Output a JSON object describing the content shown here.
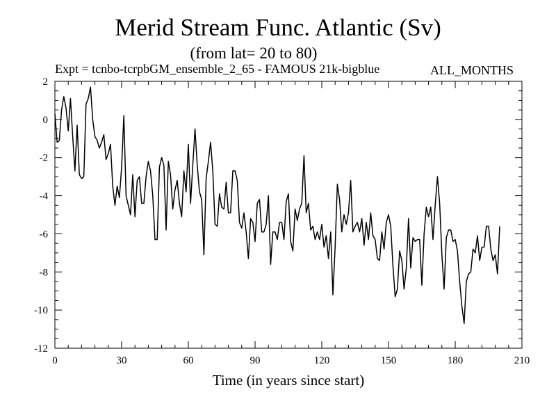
{
  "chart_data": {
    "type": "line",
    "title": "Merid Stream Func. Atlantic (Sv)",
    "subtitle": "(from lat= 20 to 80)",
    "experiment": "Expt = tcnbo-tcrpbGM_ensemble_2_65 - FAMOUS 21k-bigblue",
    "months_label": "ALL_MONTHS",
    "xlabel": "Time (in years since start)",
    "ylabel": "",
    "xlim": [
      0,
      210
    ],
    "ylim": [
      -12,
      2
    ],
    "xticks": [
      0,
      30,
      60,
      90,
      120,
      150,
      180,
      210
    ],
    "yticks": [
      2,
      0,
      -2,
      -4,
      -6,
      -8,
      -10,
      -12
    ],
    "grid": false,
    "x_start": 0,
    "x_step": 1,
    "series": [
      {
        "name": "Merid Stream Func. Atlantic",
        "values": [
          0.3,
          -1.2,
          -1.1,
          0.5,
          1.2,
          0.6,
          -0.6,
          1.1,
          -0.9,
          -2.7,
          -0.3,
          -2.9,
          -3.1,
          -3.0,
          0.8,
          1.1,
          1.7,
          0.0,
          -0.9,
          -1.1,
          -1.5,
          -1.2,
          -0.8,
          -2.1,
          -1.8,
          -1.3,
          -3.5,
          -4.5,
          -3.5,
          -4.1,
          -2.5,
          0.2,
          -4.0,
          -4.5,
          -5.0,
          -2.9,
          -5.1,
          -3.2,
          -3.0,
          -4.4,
          -4.4,
          -3.0,
          -2.2,
          -2.7,
          -4.0,
          -6.3,
          -6.3,
          -2.5,
          -2.0,
          -2.4,
          -5.8,
          -2.2,
          -2.9,
          -4.7,
          -3.7,
          -3.2,
          -4.4,
          -5.1,
          -2.7,
          -3.8,
          -1.3,
          -4.4,
          -2.4,
          -0.5,
          -2.4,
          -3.8,
          -4.2,
          -7.1,
          -3.1,
          -2.2,
          -1.2,
          -2.7,
          -5.5,
          -5.6,
          -3.9,
          -4.6,
          -4.7,
          -3.3,
          -4.9,
          -4.9,
          -2.7,
          -2.7,
          -3.2,
          -5.4,
          -5.7,
          -4.9,
          -5.9,
          -7.3,
          -5.2,
          -5.4,
          -6.4,
          -4.4,
          -4.2,
          -5.9,
          -5.9,
          -5.5,
          -4.0,
          -7.6,
          -5.9,
          -5.9,
          -6.3,
          -5.4,
          -5.4,
          -6.3,
          -4.3,
          -3.9,
          -6.4,
          -6.9,
          -4.7,
          -5.3,
          -4.7,
          -4.4,
          -1.9,
          -4.9,
          -4.4,
          -5.8,
          -5.6,
          -6.3,
          -5.9,
          -6.3,
          -5.5,
          -6.7,
          -6.1,
          -7.3,
          -5.9,
          -9.2,
          -6.7,
          -3.4,
          -4.2,
          -5.9,
          -5.0,
          -5.5,
          -4.9,
          -3.2,
          -5.9,
          -5.6,
          -5.4,
          -5.9,
          -5.2,
          -6.6,
          -5.4,
          -6.3,
          -4.9,
          -6.1,
          -6.3,
          -7.3,
          -7.4,
          -5.9,
          -6.8,
          -5.4,
          -5.0,
          -5.6,
          -7.7,
          -9.3,
          -8.9,
          -6.9,
          -7.4,
          -8.9,
          -7.8,
          -5.2,
          -7.8,
          -6.2,
          -6.4,
          -6.3,
          -6.3,
          -8.7,
          -6.0,
          -4.6,
          -5.1,
          -4.6,
          -6.3,
          -4.5,
          -3.0,
          -4.4,
          -7.1,
          -8.9,
          -6.2,
          -5.8,
          -5.8,
          -6.4,
          -6.3,
          -6.9,
          -8.5,
          -9.8,
          -10.7,
          -8.5,
          -8.1,
          -8.0,
          -6.8,
          -7.0,
          -6.1,
          -7.4,
          -6.7,
          -6.7,
          -5.6,
          -5.6,
          -6.8,
          -7.4,
          -7.1,
          -8.1,
          -5.6
        ]
      }
    ]
  }
}
